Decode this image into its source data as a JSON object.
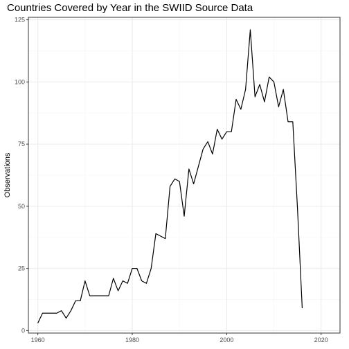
{
  "chart_data": {
    "type": "line",
    "title": "Countries Covered by Year in the SWIID Source Data",
    "xlabel": "",
    "ylabel": "Observations",
    "xlim": [
      1958,
      2024
    ],
    "ylim": [
      -1,
      126
    ],
    "x_ticks": [
      1960,
      1980,
      2000,
      2020
    ],
    "x_tick_labels": [
      "1960",
      "1980",
      "2000",
      "2020"
    ],
    "y_ticks": [
      0,
      25,
      50,
      75,
      100,
      125
    ],
    "y_tick_labels": [
      "0",
      "25",
      "50",
      "75",
      "100",
      "125"
    ],
    "grid": true,
    "legend": "none",
    "colors": {
      "line": "#000000",
      "grid_major": "#ebebeb",
      "grid_minor": "#f5f5f5",
      "panel_border": "#333333"
    },
    "x": [
      1960,
      1961,
      1962,
      1963,
      1964,
      1965,
      1966,
      1967,
      1968,
      1969,
      1970,
      1971,
      1972,
      1973,
      1974,
      1975,
      1976,
      1977,
      1978,
      1979,
      1980,
      1981,
      1982,
      1983,
      1984,
      1985,
      1986,
      1987,
      1988,
      1989,
      1990,
      1991,
      1992,
      1993,
      1994,
      1995,
      1996,
      1997,
      1998,
      1999,
      2000,
      2001,
      2002,
      2003,
      2004,
      2005,
      2006,
      2007,
      2008,
      2009,
      2010,
      2011,
      2012,
      2013,
      2014,
      2015,
      2016
    ],
    "values": [
      3,
      7,
      7,
      7,
      7,
      8,
      5,
      8,
      12,
      12,
      20,
      14,
      14,
      14,
      14,
      14,
      21,
      16,
      20,
      19,
      25,
      25,
      20,
      19,
      25,
      39,
      38,
      37,
      58,
      61,
      60,
      46,
      65,
      59,
      66,
      73,
      76,
      71,
      81,
      77,
      80,
      80,
      93,
      89,
      97,
      121,
      94,
      99,
      92,
      102,
      100,
      90,
      97,
      84,
      84,
      49,
      9
    ]
  }
}
